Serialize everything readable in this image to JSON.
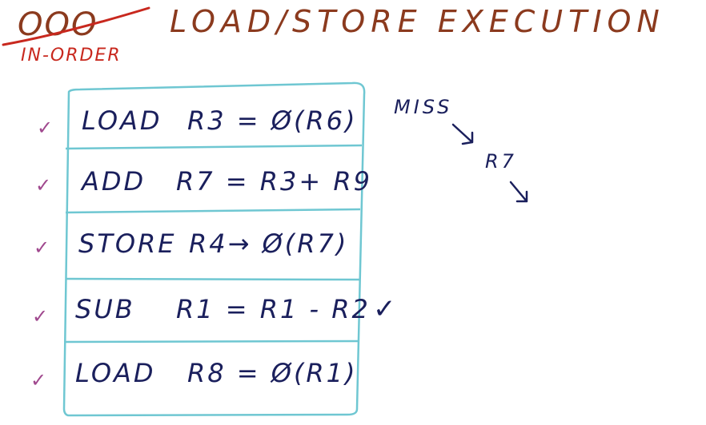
{
  "header": {
    "ooo_label": "OOO",
    "inorder_label": "IN-ORDER",
    "title": "LOAD/STORE EXECUTION"
  },
  "instructions": [
    {
      "op": "LOAD",
      "expr": "R3 = Ø(R6)",
      "check": "✓"
    },
    {
      "op": "ADD",
      "expr": "R7 = R3+ R9",
      "check": "✓"
    },
    {
      "op": "STORE",
      "expr": "R4→ Ø(R7)",
      "check": "✓"
    },
    {
      "op": "SUB",
      "expr": "R1 = R1 - R2",
      "check": "✓"
    },
    {
      "op": "LOAD",
      "expr": "R8 = Ø(R1)",
      "check": "✓"
    }
  ],
  "notes": {
    "miss": "MISS",
    "reg": "R7",
    "sub_check": "✓"
  },
  "colors": {
    "box": "#6fc7d2",
    "ink": "#1a1f5c",
    "title": "#8b3a1e",
    "inorder": "#c8281e",
    "check": "#a0488e"
  }
}
